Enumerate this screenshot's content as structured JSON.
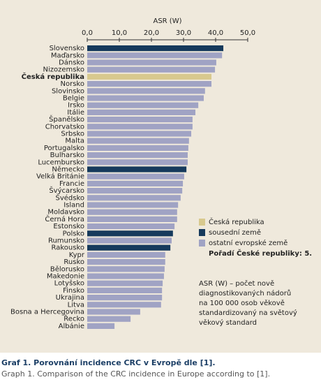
{
  "chart_data": {
    "type": "bar",
    "orientation": "horizontal",
    "x_label": "ASR (W)",
    "categories": [
      "Slovensko",
      "Maďarsko",
      "Dánsko",
      "Nizozemsko",
      "Česká republika",
      "Norsko",
      "Slovinsko",
      "Belgie",
      "Irsko",
      "Itálie",
      "Španělsko",
      "Chorvatsko",
      "Srbsko",
      "Malta",
      "Portugalsko",
      "Bulharsko",
      "Lucembursko",
      "Německo",
      "Velká Británie",
      "Francie",
      "Švýcarsko",
      "Švédsko",
      "Island",
      "Moldavsko",
      "Černá Hora",
      "Estonsko",
      "Polsko",
      "Rumunsko",
      "Rakousko",
      "Kypr",
      "Rusko",
      "Bělorusko",
      "Makedonie",
      "Lotyšsko",
      "Finsko",
      "Ukrajina",
      "Litva",
      "Bosna a Hercegovina",
      "Řecko",
      "Albánie"
    ],
    "series": [
      {
        "name": "Česká republika",
        "color": "#d8c98e",
        "values": [
          null,
          null,
          null,
          null,
          38.7,
          null,
          null,
          null,
          null,
          null,
          null,
          null,
          null,
          null,
          null,
          null,
          null,
          null,
          null,
          null,
          null,
          null,
          null,
          null,
          null,
          null,
          null,
          null,
          null,
          null,
          null,
          null,
          null,
          null,
          null,
          null,
          null,
          null,
          null,
          null
        ]
      },
      {
        "name": "sousední země",
        "color": "#163a5c",
        "values": [
          42.4,
          null,
          null,
          null,
          null,
          null,
          null,
          null,
          null,
          null,
          null,
          null,
          null,
          null,
          null,
          null,
          null,
          30.9,
          null,
          null,
          null,
          null,
          null,
          null,
          null,
          null,
          26.7,
          null,
          25.9,
          null,
          null,
          null,
          null,
          null,
          null,
          null,
          null,
          null,
          null,
          null
        ]
      },
      {
        "name": "ostatní evropské země",
        "color": "#a0a3c4",
        "values": [
          null,
          42.0,
          40.2,
          39.8,
          null,
          38.7,
          36.7,
          36.3,
          34.6,
          33.7,
          32.8,
          32.8,
          32.4,
          31.7,
          31.5,
          31.3,
          31.3,
          null,
          30.2,
          29.8,
          29.6,
          29.1,
          28.3,
          28.0,
          28.0,
          27.2,
          null,
          26.3,
          null,
          24.3,
          24.3,
          24.1,
          23.9,
          23.5,
          23.3,
          23.3,
          23.0,
          16.5,
          13.5,
          8.5
        ]
      }
    ],
    "xlim": [
      0,
      50
    ],
    "xticks": [
      {
        "value": 0,
        "label": "0,0"
      },
      {
        "value": 10,
        "label": "10,0"
      },
      {
        "value": 20,
        "label": "20,0"
      },
      {
        "value": 30,
        "label": "30,0"
      },
      {
        "value": 40,
        "label": "40,0"
      },
      {
        "value": 50,
        "label": "50,0"
      }
    ],
    "legend_position": "right",
    "rank_note": "Pořadí České republiky: 5.",
    "annotation": [
      "ASR (W) – počet nově",
      "diagnostikovaných nádorů",
      "na 100 000 osob věkově",
      "standardizovaný na světový",
      "věkový standard"
    ],
    "caption": "Graf 1. Porovnání incidence CRC v Evropě dle [1].",
    "caption_en": "Graph 1. Comparison of the CRC incidence in Europe according to [1]."
  }
}
